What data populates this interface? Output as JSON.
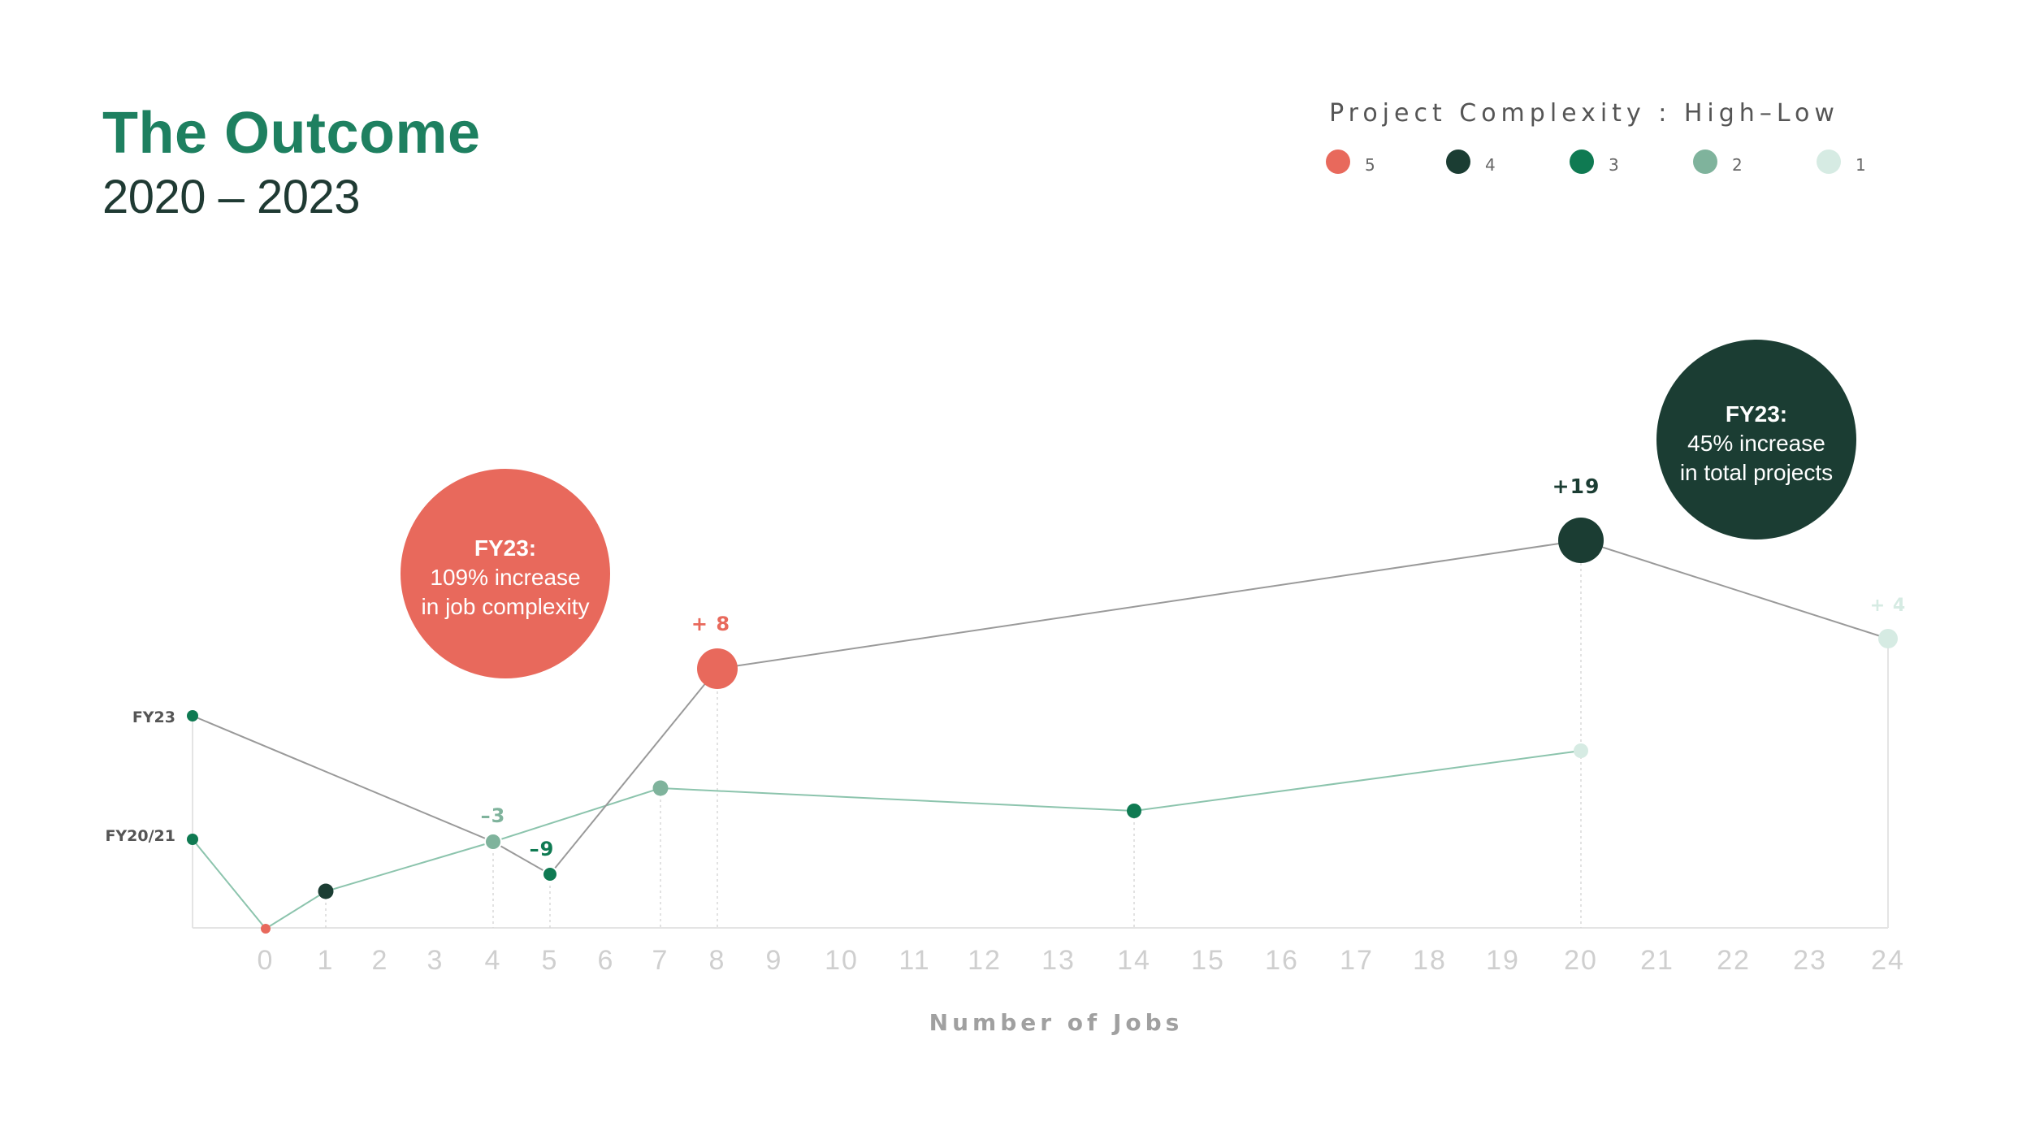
{
  "header": {
    "title": "The Outcome",
    "subtitle": "2020 – 2023"
  },
  "legend": {
    "title": "Project Complexity : High–Low",
    "items": [
      {
        "label": "5",
        "color": "#e8695c"
      },
      {
        "label": "4",
        "color": "#1b3d33"
      },
      {
        "label": "3",
        "color": "#0f7a52"
      },
      {
        "label": "2",
        "color": "#7fb39c"
      },
      {
        "label": "1",
        "color": "#d6ebe3"
      }
    ]
  },
  "callouts": [
    {
      "heading": "FY23:",
      "line1": "109% increase",
      "line2": "in job complexity",
      "color": "#e8695c"
    },
    {
      "heading": "FY23:",
      "line1": "45% increase",
      "line2": "in total projects",
      "color": "#1b3d33"
    }
  ],
  "chart_data": {
    "type": "scatter",
    "xlabel": "Number of Jobs",
    "xticks": [
      "0",
      "1",
      "2",
      "3",
      "4",
      "5",
      "6",
      "7",
      "8",
      "9",
      "10",
      "11",
      "12",
      "13",
      "14",
      "15",
      "16",
      "17",
      "18",
      "19",
      "20",
      "21",
      "22",
      "23",
      "24"
    ],
    "row_labels": [
      "FY23",
      "FY20/21"
    ],
    "series": [
      {
        "name": "FY20/21",
        "points": [
          {
            "complexity": 5,
            "jobs": 0
          },
          {
            "complexity": 4,
            "jobs": 1
          },
          {
            "complexity": 2,
            "jobs": 4
          },
          {
            "complexity": 2,
            "jobs": 7
          },
          {
            "complexity": 3,
            "jobs": 14
          },
          {
            "complexity": 1,
            "jobs": 20
          }
        ]
      },
      {
        "name": "FY23",
        "points": [
          {
            "complexity": 2,
            "jobs": 4,
            "change": "–3"
          },
          {
            "complexity": 3,
            "jobs": 5,
            "change": "–9"
          },
          {
            "complexity": 5,
            "jobs": 8,
            "change": "+ 8"
          },
          {
            "complexity": 4,
            "jobs": 20,
            "change": "+19"
          },
          {
            "complexity": 1,
            "jobs": 24,
            "change": "+ 4"
          }
        ]
      }
    ],
    "colors": {
      "fy20_line": "#8cc4ad",
      "fy23_line": "#9a9a9a",
      "axis": "#e4e4e4",
      "tick": "#cfcfcf"
    }
  }
}
